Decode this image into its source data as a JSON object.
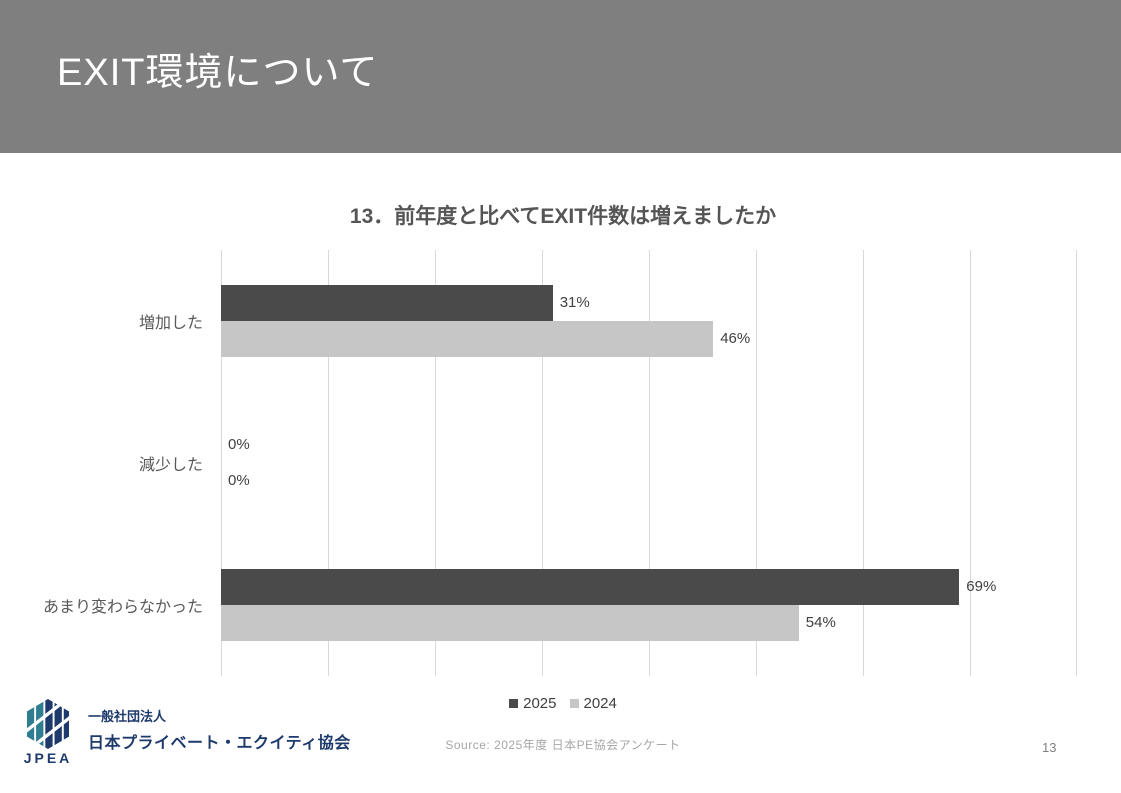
{
  "slide": {
    "header": {
      "title": "EXIT環境について"
    },
    "page_number": "13",
    "source_text": "Source: 2025年度 日本PE協会アンケート"
  },
  "logo": {
    "acronym": "JPEA",
    "org_type": "一般社団法人",
    "org_name": "日本プライベート・エクイティ協会",
    "navy": "#1e3a6c",
    "teal": "#2e7d90"
  },
  "colors": {
    "header_bg": "#7f7f7f",
    "gridline": "#d9d9d9",
    "value_text": "#404040",
    "category_text": "#595959",
    "title_text": "#555555",
    "source_text": "#a6a6a6"
  },
  "chart_data": {
    "type": "bar",
    "orientation": "horizontal",
    "title": "13．前年度と比べてEXIT件数は増えましたか",
    "categories": [
      "増加した",
      "減少した",
      "あまり変わらなかった"
    ],
    "series": [
      {
        "name": "2025",
        "color": "#4a4a4a",
        "values": [
          31,
          0,
          69
        ]
      },
      {
        "name": "2024",
        "color": "#c6c6c6",
        "values": [
          46,
          0,
          54
        ]
      }
    ],
    "unit": "%",
    "xlim": [
      0,
      80
    ],
    "gridline_interval": 10,
    "grid": true,
    "legend_position": "bottom",
    "value_labels": true
  }
}
